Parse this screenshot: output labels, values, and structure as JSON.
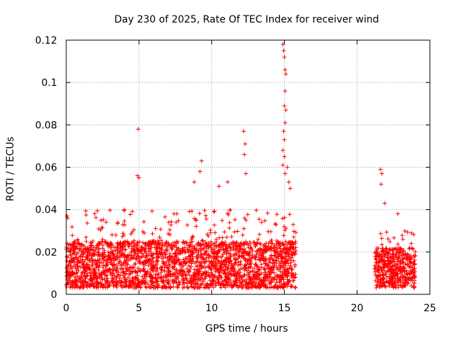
{
  "chart_data": {
    "type": "scatter",
    "title": "Day 230 of 2025, Rate Of TEC Index for receiver wind",
    "xlabel": "GPS time / hours",
    "ylabel": "ROTI / TECUs",
    "xlim": [
      0,
      25
    ],
    "ylim": [
      0,
      0.12
    ],
    "x_ticks": [
      0,
      5,
      10,
      15,
      20,
      25
    ],
    "y_ticks": [
      0,
      0.02,
      0.04,
      0.06,
      0.08,
      0.1,
      0.12
    ],
    "x_tick_labels": [
      "0",
      "5",
      "10",
      "15",
      "20",
      "25"
    ],
    "y_tick_labels": [
      "0",
      "0.02",
      "0.04",
      "0.06",
      "0.08",
      "0.1",
      "0.12"
    ],
    "grid": true,
    "marker": "+",
    "color": "#ff0000",
    "series": [
      {
        "name": "ROTI",
        "segments": [
          {
            "x_range": [
              0.0,
              15.8
            ],
            "typical_min": 0.003,
            "typical_max": 0.025,
            "max_envelope": 0.04
          },
          {
            "x_range": [
              21.2,
              24.0
            ],
            "typical_min": 0.003,
            "typical_max": 0.022,
            "max_envelope": 0.03
          }
        ],
        "notable_points": [
          {
            "x": 0.05,
            "y": 0.037
          },
          {
            "x": 0.1,
            "y": 0.036
          },
          {
            "x": 4.95,
            "y": 0.078
          },
          {
            "x": 4.9,
            "y": 0.056
          },
          {
            "x": 5.0,
            "y": 0.055
          },
          {
            "x": 8.8,
            "y": 0.053
          },
          {
            "x": 9.3,
            "y": 0.063
          },
          {
            "x": 9.2,
            "y": 0.058
          },
          {
            "x": 10.5,
            "y": 0.051
          },
          {
            "x": 11.1,
            "y": 0.053
          },
          {
            "x": 12.2,
            "y": 0.077
          },
          {
            "x": 12.3,
            "y": 0.071
          },
          {
            "x": 12.25,
            "y": 0.066
          },
          {
            "x": 12.35,
            "y": 0.057
          },
          {
            "x": 14.9,
            "y": 0.118
          },
          {
            "x": 14.95,
            "y": 0.115
          },
          {
            "x": 15.0,
            "y": 0.112
          },
          {
            "x": 15.05,
            "y": 0.106
          },
          {
            "x": 15.1,
            "y": 0.104
          },
          {
            "x": 15.05,
            "y": 0.096
          },
          {
            "x": 15.0,
            "y": 0.089
          },
          {
            "x": 15.1,
            "y": 0.087
          },
          {
            "x": 15.05,
            "y": 0.081
          },
          {
            "x": 14.95,
            "y": 0.077
          },
          {
            "x": 15.0,
            "y": 0.073
          },
          {
            "x": 14.9,
            "y": 0.068
          },
          {
            "x": 15.0,
            "y": 0.065
          },
          {
            "x": 14.9,
            "y": 0.061
          },
          {
            "x": 15.05,
            "y": 0.057
          },
          {
            "x": 15.2,
            "y": 0.06
          },
          {
            "x": 15.3,
            "y": 0.053
          },
          {
            "x": 15.4,
            "y": 0.05
          },
          {
            "x": 21.6,
            "y": 0.059
          },
          {
            "x": 21.7,
            "y": 0.057
          },
          {
            "x": 21.65,
            "y": 0.052
          },
          {
            "x": 21.9,
            "y": 0.043
          },
          {
            "x": 22.8,
            "y": 0.038
          }
        ]
      }
    ]
  }
}
